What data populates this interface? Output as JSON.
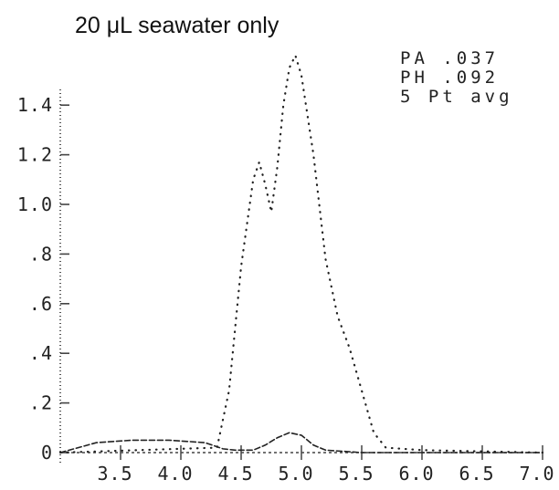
{
  "chart_data": {
    "type": "line",
    "title": "20 μL seawater only",
    "xlabel": "",
    "ylabel": "",
    "xlim": [
      3.0,
      7.0
    ],
    "ylim": [
      0,
      1.5
    ],
    "x_ticks": [
      "3.5",
      "4.0",
      "4.5",
      "5.0",
      "5.5",
      "6.0",
      "6.5",
      "7.0"
    ],
    "y_ticks": [
      "0",
      ".2",
      ".4",
      ".6",
      ".8",
      "1.0",
      "1.2",
      "1.4"
    ],
    "readout": [
      "PA   .037",
      "PH   .092",
      "5 Pt  avg"
    ],
    "grid": false,
    "series": [
      {
        "style": "dotted",
        "points": [
          [
            3.0,
            0.0
          ],
          [
            4.3,
            0.02
          ],
          [
            4.4,
            0.25
          ],
          [
            4.5,
            0.75
          ],
          [
            4.6,
            1.1
          ],
          [
            4.65,
            1.17
          ],
          [
            4.7,
            1.08
          ],
          [
            4.75,
            0.97
          ],
          [
            4.8,
            1.15
          ],
          [
            4.85,
            1.4
          ],
          [
            4.9,
            1.55
          ],
          [
            4.95,
            1.6
          ],
          [
            5.0,
            1.52
          ],
          [
            5.1,
            1.2
          ],
          [
            5.2,
            0.78
          ],
          [
            5.3,
            0.55
          ],
          [
            5.4,
            0.42
          ],
          [
            5.5,
            0.25
          ],
          [
            5.6,
            0.08
          ],
          [
            5.7,
            0.02
          ],
          [
            6.0,
            0.01
          ],
          [
            7.0,
            0.0
          ]
        ]
      },
      {
        "style": "dashed",
        "points": [
          [
            3.0,
            0.0
          ],
          [
            3.3,
            0.04
          ],
          [
            3.6,
            0.05
          ],
          [
            3.9,
            0.05
          ],
          [
            4.2,
            0.04
          ],
          [
            4.35,
            0.015
          ],
          [
            4.45,
            0.01
          ],
          [
            4.6,
            0.01
          ],
          [
            4.7,
            0.03
          ],
          [
            4.8,
            0.06
          ],
          [
            4.9,
            0.08
          ],
          [
            5.0,
            0.07
          ],
          [
            5.1,
            0.03
          ],
          [
            5.2,
            0.01
          ],
          [
            5.5,
            0.0
          ],
          [
            7.0,
            0.0
          ]
        ]
      }
    ]
  }
}
